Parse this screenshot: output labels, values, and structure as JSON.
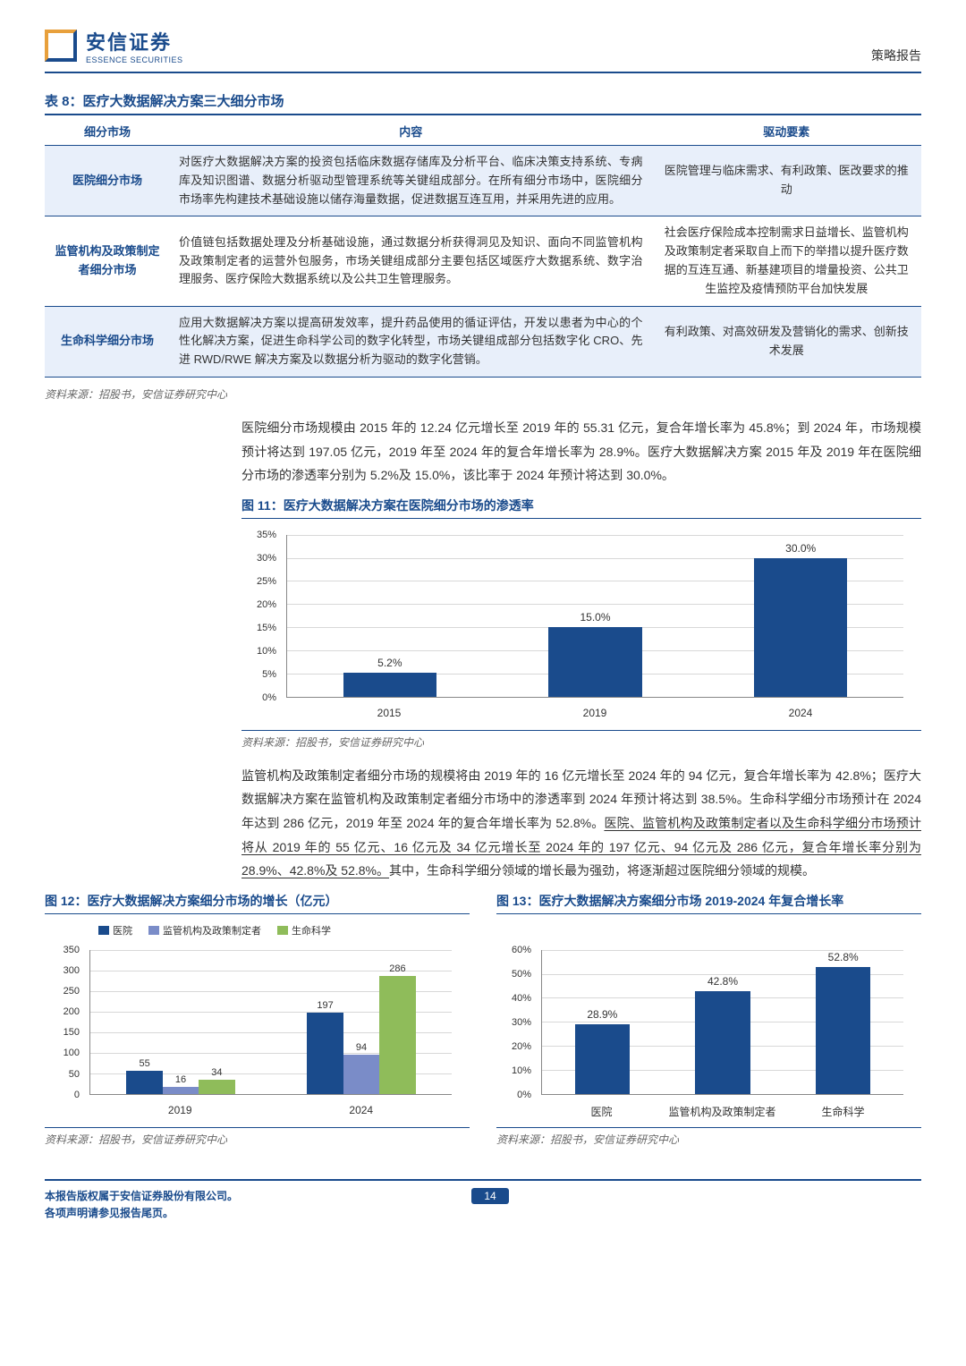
{
  "header": {
    "logo_cn": "安信证券",
    "logo_en": "ESSENCE SECURITIES",
    "report_type": "策略报告"
  },
  "table8": {
    "title": "表 8：医疗大数据解决方案三大细分市场",
    "headers": [
      "细分市场",
      "内容",
      "驱动要素"
    ],
    "rows": [
      {
        "market": "医院细分市场",
        "content": "对医疗大数据解决方案的投资包括临床数据存储库及分析平台、临床决策支持系统、专病库及知识图谱、数据分析驱动型管理系统等关键组成部分。在所有细分市场中，医院细分市场率先构建技术基础设施以储存海量数据，促进数据互连互用，并采用先进的应用。",
        "driver": "医院管理与临床需求、有利政策、医改要求的推动"
      },
      {
        "market": "监管机构及政策制定者细分市场",
        "content": "价值链包括数据处理及分析基础设施，通过数据分析获得洞见及知识、面向不同监管机构及政策制定者的运营外包服务，市场关键组成部分主要包括区域医疗大数据系统、数字治理服务、医疗保险大数据系统以及公共卫生管理服务。",
        "driver": "社会医疗保险成本控制需求日益增长、监管机构及政策制定者采取自上而下的举措以提升医疗数据的互连互通、新基建项目的增量投资、公共卫生监控及疫情预防平台加快发展"
      },
      {
        "market": "生命科学细分市场",
        "content": "应用大数据解决方案以提高研发效率，提升药品使用的循证评估，开发以患者为中心的个性化解决方案，促进生命科学公司的数字化转型，市场关键组成部分包括数字化 CRO、先进 RWD/RWE 解决方案及以数据分析为驱动的数字化营销。",
        "driver": "有利政策、对高效研发及营销化的需求、创新技术发展"
      }
    ],
    "source": "资料来源：招股书，安信证券研究中心"
  },
  "para1": "医院细分市场规模由 2015 年的 12.24 亿元增长至 2019 年的 55.31 亿元，复合年增长率为 45.8%；到 2024 年，市场规模预计将达到 197.05 亿元，2019 年至 2024 年的复合年增长率为 28.9%。医疗大数据解决方案 2015 年及 2019 年在医院细分市场的渗透率分别为 5.2%及 15.0%，该比率于 2024 年预计将达到 30.0%。",
  "chart11": {
    "title": "图 11：医疗大数据解决方案在医院细分市场的渗透率",
    "type": "bar",
    "categories": [
      "2015",
      "2019",
      "2024"
    ],
    "values": [
      5.2,
      15.0,
      30.0
    ],
    "value_labels": [
      "5.2%",
      "15.0%",
      "30.0%"
    ],
    "ylim": [
      0,
      35
    ],
    "yticks": [
      "0%",
      "5%",
      "10%",
      "15%",
      "20%",
      "25%",
      "30%",
      "35%"
    ],
    "bar_color": "#1a4b8c",
    "source": "资料来源：招股书，安信证券研究中心"
  },
  "para2_a": "监管机构及政策制定者细分市场的规模将由 2019 年的 16 亿元增长至 2024 年的 94 亿元，复合年增长率为 42.8%；医疗大数据解决方案在监管机构及政策制定者细分市场中的渗透率到 2024 年预计将达到 38.5%。生命科学细分市场预计在 2024 年达到 286 亿元，2019 年至 2024 年的复合年增长率为 52.8%。",
  "para2_b": "医院、监管机构及政策制定者以及生命科学细分市场预计将从 2019 年的 55 亿元、16 亿元及 34 亿元增长至 2024 年的 197 亿元、94 亿元及 286 亿元，复合年增长率分别为 28.9%、42.8%及 52.8%。",
  "para2_c": "其中，生命科学细分领域的增长最为强劲，将逐渐超过医院细分领域的规模。",
  "chart12": {
    "title": "图 12：医疗大数据解决方案细分市场的增长（亿元）",
    "type": "grouped-bar",
    "series_names": [
      "医院",
      "监管机构及政策制定者",
      "生命科学"
    ],
    "series_colors": [
      "#1a4b8c",
      "#7a8cc8",
      "#8fbc5a"
    ],
    "categories": [
      "2019",
      "2024"
    ],
    "data": [
      [
        55,
        197
      ],
      [
        16,
        94
      ],
      [
        34,
        286
      ]
    ],
    "ylim": [
      0,
      350
    ],
    "yticks": [
      0,
      50,
      100,
      150,
      200,
      250,
      300,
      350
    ],
    "source": "资料来源：招股书，安信证券研究中心"
  },
  "chart13": {
    "title": "图 13：医疗大数据解决方案细分市场 2019-2024 年复合增长率",
    "type": "bar",
    "categories": [
      "医院",
      "监管机构及政策制定者",
      "生命科学"
    ],
    "values": [
      28.9,
      42.8,
      52.8
    ],
    "value_labels": [
      "28.9%",
      "42.8%",
      "52.8%"
    ],
    "ylim": [
      0,
      60
    ],
    "yticks": [
      "0%",
      "10%",
      "20%",
      "30%",
      "40%",
      "50%",
      "60%"
    ],
    "bar_color": "#1a4b8c",
    "source": "资料来源：招股书，安信证券研究中心"
  },
  "footer": {
    "line1": "本报告版权属于安信证券股份有限公司。",
    "line2": "各项声明请参见报告尾页。",
    "page": "14"
  }
}
